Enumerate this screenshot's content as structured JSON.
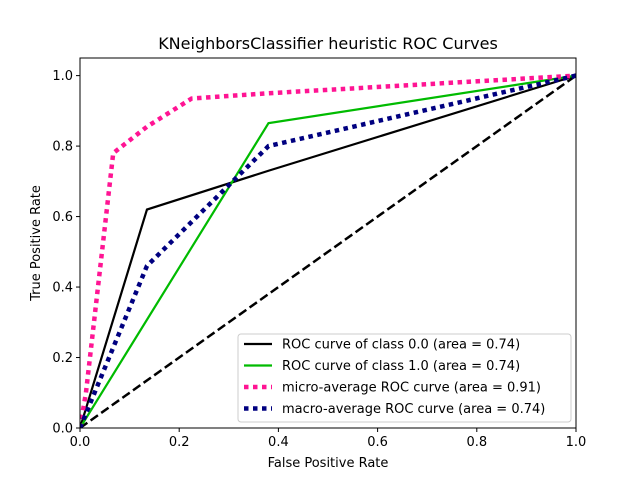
{
  "chart_data": {
    "type": "line",
    "title": "KNeighborsClassifier heuristic ROC Curves",
    "xlabel": "False Positive Rate",
    "ylabel": "True Positive Rate",
    "xlim": [
      0,
      1
    ],
    "ylim": [
      0,
      1.05
    ],
    "xticks": [
      0,
      0.2,
      0.4,
      0.6,
      0.8,
      1.0
    ],
    "xtick_labels": [
      "0.0",
      "0.2",
      "0.4",
      "0.6",
      "0.8",
      "1.0"
    ],
    "yticks": [
      0,
      0.2,
      0.4,
      0.6,
      0.8,
      1.0
    ],
    "ytick_labels": [
      "0.0",
      "0.2",
      "0.4",
      "0.6",
      "0.8",
      "1.0"
    ],
    "grid": false,
    "legend_position": "lower-right",
    "series": [
      {
        "name": "ROC curve of class 0.0 (area = 0.74)",
        "color": "#000000",
        "style": "solid",
        "x": [
          0,
          0.135,
          0.38,
          1.0
        ],
        "y": [
          0,
          0.62,
          0.73,
          1.0
        ]
      },
      {
        "name": "ROC curve of class 1.0 (area = 0.74)",
        "color": "#00bb00",
        "style": "solid",
        "x": [
          0,
          0.38,
          1.0
        ],
        "y": [
          0,
          0.865,
          1.0
        ]
      },
      {
        "name": "micro-average ROC curve (area = 0.91)",
        "color": "#ff1493",
        "style": "dotted",
        "x": [
          0,
          0.012,
          0.067,
          0.135,
          0.225,
          0.38,
          1.0
        ],
        "y": [
          0,
          0.1,
          0.78,
          0.855,
          0.935,
          0.95,
          1.0
        ]
      },
      {
        "name": "macro-average ROC curve (area = 0.74)",
        "color": "#000080",
        "style": "dotted",
        "x": [
          0,
          0.135,
          0.38,
          1.0
        ],
        "y": [
          0,
          0.46,
          0.8,
          1.0
        ]
      }
    ],
    "reference_line": {
      "color": "#000000",
      "style": "dashed",
      "x": [
        0,
        1
      ],
      "y": [
        0,
        1
      ]
    }
  }
}
